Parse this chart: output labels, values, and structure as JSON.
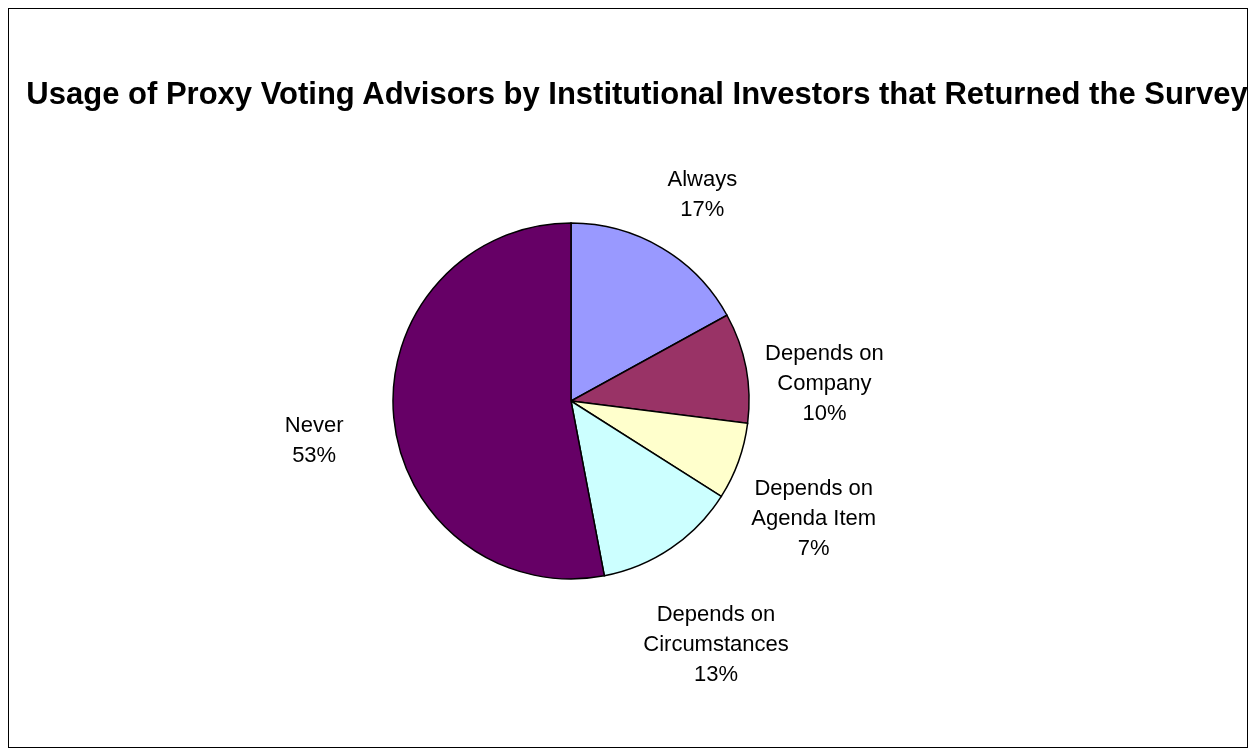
{
  "chart_data": {
    "type": "pie",
    "title": "Usage of Proxy Voting Advisors\nby Institutional Investors that Returned the Survey",
    "categories": [
      "Always",
      "Depends on Company",
      "Depends on Agenda Item",
      "Depends on Circumstances",
      "Never"
    ],
    "values": [
      17,
      10,
      7,
      13,
      53
    ],
    "colors": [
      "#9999ff",
      "#993366",
      "#ffffcc",
      "#ccffff",
      "#660066"
    ],
    "value_labels": [
      "17%",
      "10%",
      "7%",
      "13%",
      "53%"
    ],
    "legend": false
  }
}
